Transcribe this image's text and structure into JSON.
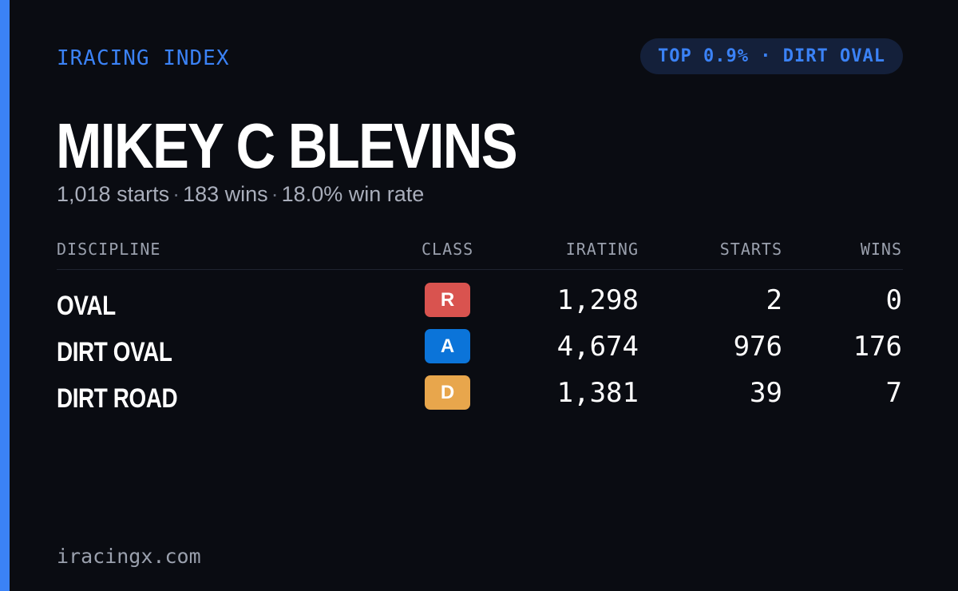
{
  "brand": "IRACING INDEX",
  "badge": "TOP 0.9% · DIRT OVAL",
  "driver_name": "MIKEY C BLEVINS",
  "summary": {
    "starts": "1,018 starts",
    "wins": "183 wins",
    "win_rate": "18.0% win rate",
    "separator": "·"
  },
  "table": {
    "headers": {
      "discipline": "DISCIPLINE",
      "class": "CLASS",
      "irating": "IRATING",
      "starts": "STARTS",
      "wins": "WINS"
    },
    "rows": [
      {
        "discipline": "OVAL",
        "class": "R",
        "class_color": "#d9534f",
        "irating": "1,298",
        "starts": "2",
        "wins": "0"
      },
      {
        "discipline": "DIRT OVAL",
        "class": "A",
        "class_color": "#0b74d9",
        "irating": "4,674",
        "starts": "976",
        "wins": "176"
      },
      {
        "discipline": "DIRT ROAD",
        "class": "D",
        "class_color": "#e8a64c",
        "irating": "1,381",
        "starts": "39",
        "wins": "7"
      }
    ]
  },
  "footer": "iracingx.com",
  "colors": {
    "background": "#0a0c12",
    "accent": "#3b82f6",
    "badge_bg": "#14203a"
  }
}
